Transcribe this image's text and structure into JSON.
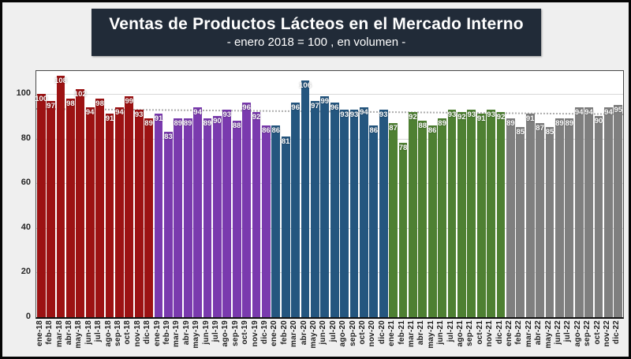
{
  "page": {
    "background_color": "#EFEFEF",
    "border_color": "#060606"
  },
  "header": {
    "title": "Ventas de Productos Lácteos en el Mercado Interno",
    "subtitle": "- enero 2018 = 100 , en volumen -",
    "background_color": "#212B38",
    "text_color": "#FFFFFF"
  },
  "chart_data": {
    "type": "bar",
    "title": "Ventas de Productos Lácteos en el Mercado Interno",
    "subtitle": "- enero 2018 = 100 , en volumen -",
    "xlabel": "",
    "ylabel": "",
    "ylim": [
      0,
      110
    ],
    "yticks": [
      0,
      20,
      40,
      60,
      80,
      100
    ],
    "grid": "horizontal light-gray, drawn behind bars",
    "legend_position": "none",
    "data_labels": "value shown in white bold inside top of every bar",
    "categories": [
      "ene-18",
      "feb-18",
      "mar-18",
      "abr-18",
      "may-18",
      "jun-18",
      "jul-18",
      "ago-18",
      "sep-18",
      "oct-18",
      "nov-18",
      "dic-18",
      "ene-19",
      "feb-19",
      "mar-19",
      "abr-19",
      "may-19",
      "jun-19",
      "jul-19",
      "ago-19",
      "sep-19",
      "oct-19",
      "nov-19",
      "dic-19",
      "ene-20",
      "feb-20",
      "mar-20",
      "abr-20",
      "may-20",
      "jun-20",
      "jul-20",
      "ago-20",
      "sep-20",
      "oct-20",
      "nov-20",
      "dic-20",
      "ene-21",
      "feb-21",
      "mar-21",
      "abr-21",
      "may-21",
      "jun-21",
      "jul-21",
      "ago-21",
      "sep-21",
      "oct-21",
      "nov-21",
      "dic-21",
      "ene-22",
      "feb-22",
      "mar-22",
      "abr-22",
      "may-22",
      "jun-22",
      "jul-22",
      "ago-22",
      "sep-22",
      "oct-22",
      "nov-22",
      "dic-22"
    ],
    "series": [
      {
        "name": "2018",
        "color": "#9C1213",
        "values": [
          100,
          97,
          108,
          98,
          102,
          94,
          98,
          91,
          94,
          99,
          93,
          89
        ]
      },
      {
        "name": "2019",
        "color": "#7A3AAE",
        "values": [
          91,
          83,
          89,
          89,
          94,
          89,
          90,
          93,
          88,
          96,
          92,
          86
        ]
      },
      {
        "name": "2020",
        "color": "#24567F",
        "values": [
          86,
          81,
          96,
          106,
          97,
          99,
          96,
          93,
          93,
          94,
          86,
          93
        ]
      },
      {
        "name": "2021",
        "color": "#4E8032",
        "values": [
          87,
          78,
          92,
          88,
          86,
          89,
          93,
          92,
          93,
          91,
          93,
          92
        ]
      },
      {
        "name": "2022",
        "color": "#7F7F7F",
        "values": [
          89,
          85,
          91,
          87,
          85,
          89,
          89,
          94,
          94,
          90,
          94,
          95
        ]
      }
    ],
    "trendline": {
      "style": "dotted",
      "color": "#ACACAC",
      "start_value": 93.6,
      "end_value": 91.2,
      "drawn_behind_bars": true
    }
  }
}
